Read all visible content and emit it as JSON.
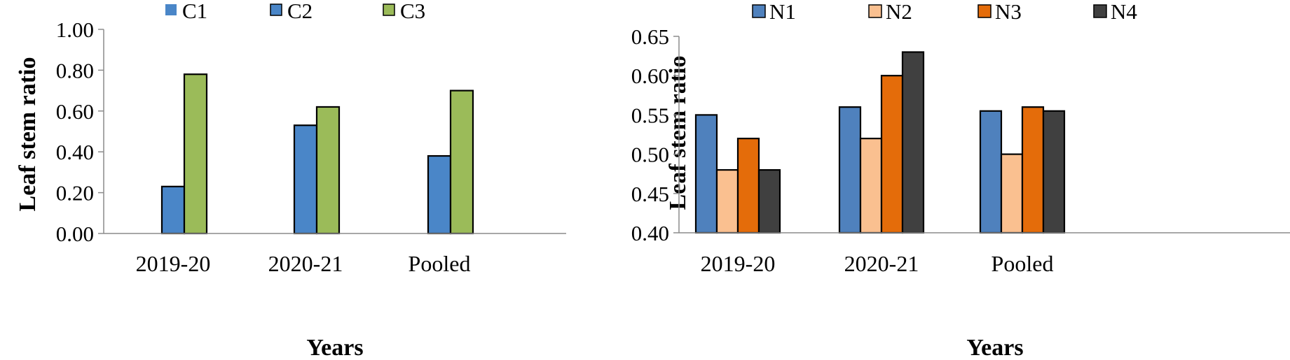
{
  "colors": {
    "C1": "#4a86c8",
    "C2": "#4a86c8",
    "C3": "#9bbb59",
    "N1": "#4f81bd",
    "N2": "#fac090",
    "N3": "#e46c0a",
    "N4": "#404040"
  },
  "chart_data": [
    {
      "type": "bar",
      "xlabel": "Years",
      "ylabel": "Leaf stem ratio",
      "ylim": [
        0,
        1.0
      ],
      "yticks": [
        "0.00",
        "0.20",
        "0.40",
        "0.60",
        "0.80",
        "1.00"
      ],
      "ytick_values": [
        0,
        0.2,
        0.4,
        0.6,
        0.8,
        1.0
      ],
      "categories": [
        "2019-20",
        "2020-21",
        "Pooled"
      ],
      "legend_position": "top",
      "grid": false,
      "series": [
        {
          "name": "C1",
          "values": [
            0,
            0,
            0
          ]
        },
        {
          "name": "C2",
          "values": [
            0.23,
            0.53,
            0.38
          ]
        },
        {
          "name": "C3",
          "values": [
            0.78,
            0.62,
            0.7
          ]
        }
      ]
    },
    {
      "type": "bar",
      "xlabel": "Years",
      "ylabel": "Leaf stem ratio",
      "ylim": [
        0.4,
        0.65
      ],
      "yticks": [
        "0.40",
        "0.45",
        "0.50",
        "0.55",
        "0.60",
        "0.65"
      ],
      "ytick_values": [
        0.4,
        0.45,
        0.5,
        0.55,
        0.6,
        0.65
      ],
      "categories": [
        "2019-20",
        "2020-21",
        "Pooled"
      ],
      "legend_position": "top",
      "grid": false,
      "series": [
        {
          "name": "N1",
          "values": [
            0.55,
            0.56,
            0.555
          ]
        },
        {
          "name": "N2",
          "values": [
            0.48,
            0.52,
            0.5
          ]
        },
        {
          "name": "N3",
          "values": [
            0.52,
            0.6,
            0.56
          ]
        },
        {
          "name": "N4",
          "values": [
            0.48,
            0.63,
            0.555
          ]
        }
      ]
    }
  ]
}
